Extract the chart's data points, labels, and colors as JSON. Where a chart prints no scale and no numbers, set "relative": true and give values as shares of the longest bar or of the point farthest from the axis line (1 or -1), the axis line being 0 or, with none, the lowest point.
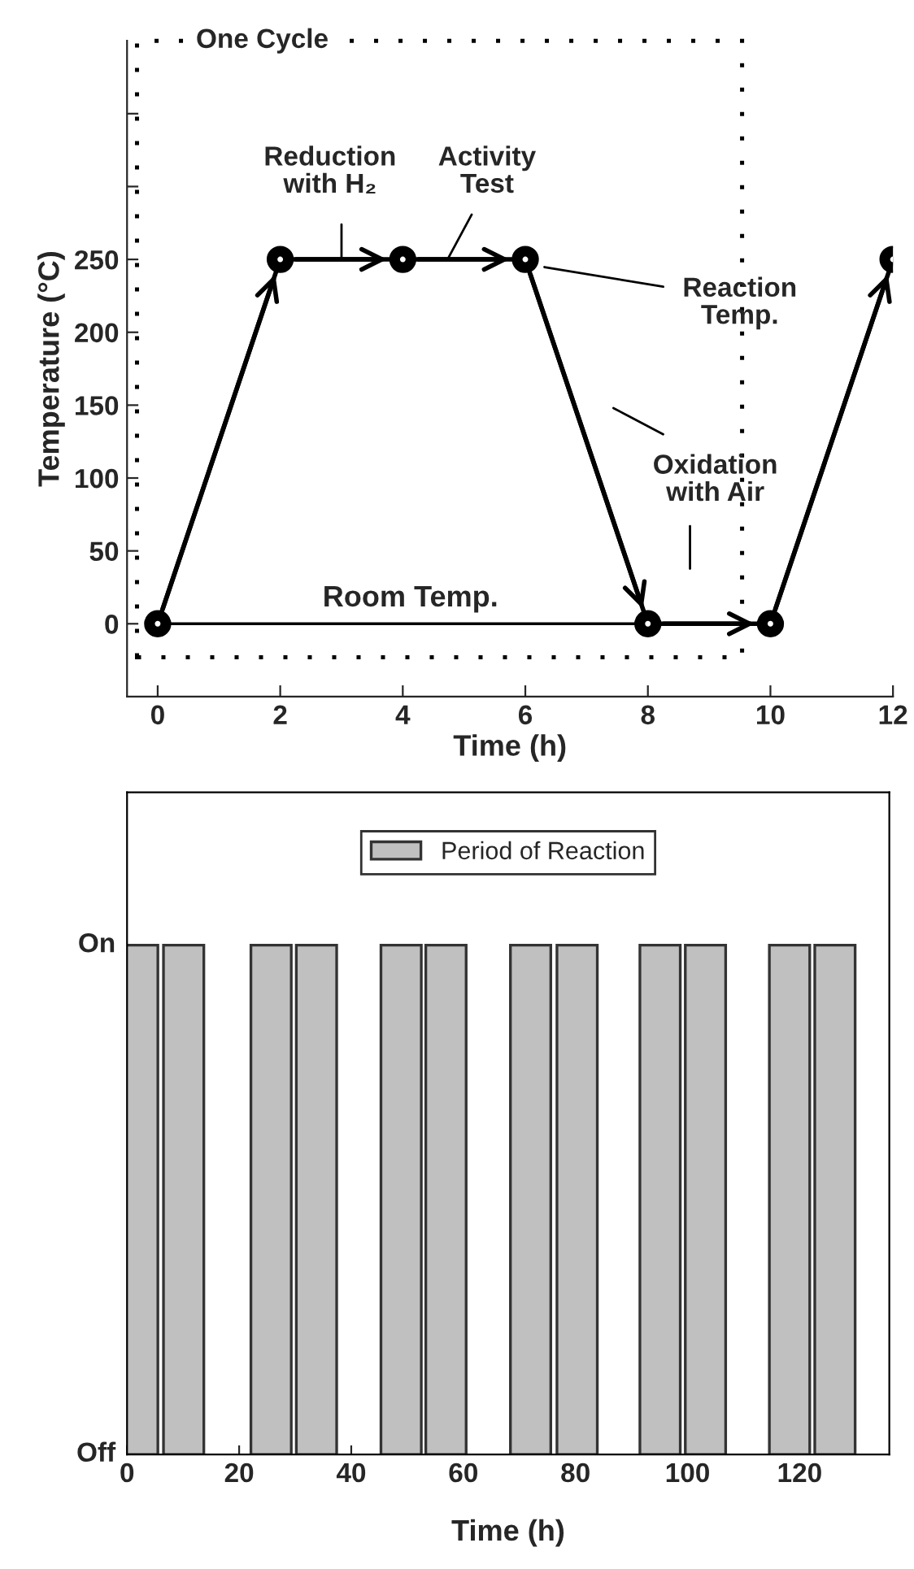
{
  "chart_data": [
    {
      "type": "line",
      "xlabel": "Time (h)",
      "ylabel": "Temperature (°C)",
      "x": [
        0,
        2,
        4,
        6,
        8,
        10,
        12
      ],
      "series": [
        {
          "color": "#000000",
          "values": [
            0,
            250,
            250,
            250,
            0,
            0,
            250
          ]
        }
      ],
      "marker": "circle",
      "line_style": "solid",
      "xlim": [
        -0.5,
        12
      ],
      "xticks": [
        0,
        2,
        4,
        6,
        8,
        10,
        12
      ],
      "ylim": [
        -50,
        400
      ],
      "yticks": [
        0,
        50,
        100,
        150,
        200,
        250,
        {
          "value": 300,
          "label": null
        },
        {
          "value": 350,
          "label": null
        }
      ],
      "ref_lines": [
        {
          "axis": "y",
          "value": 0,
          "label": "Room Temp."
        }
      ],
      "annotations": [
        "One Cycle",
        "Reduction\nwith H₂",
        "Activity\nTest",
        "Reaction\nTemp.",
        "Oxidation\nwith Air"
      ],
      "grid": false,
      "legend": false
    },
    {
      "type": "bar",
      "xlabel": "Time (h)",
      "relative": true,
      "x": [
        1.9,
        10.1,
        25.7,
        33.8,
        48.9,
        56.9,
        72.0,
        80.3,
        95.1,
        103.2,
        118.2,
        126.3
      ],
      "series": [
        {
          "name": "Period of Reaction",
          "color": "#c0c0c0",
          "values": [
            1,
            1,
            1,
            1,
            1,
            1,
            1,
            1,
            1,
            1,
            1,
            1
          ]
        }
      ],
      "xlim": [
        0,
        136
      ],
      "xticks": [
        0,
        20,
        40,
        60,
        80,
        100,
        120
      ],
      "annotations": [
        "On",
        "Off"
      ],
      "grid": false,
      "legend": "top"
    }
  ]
}
